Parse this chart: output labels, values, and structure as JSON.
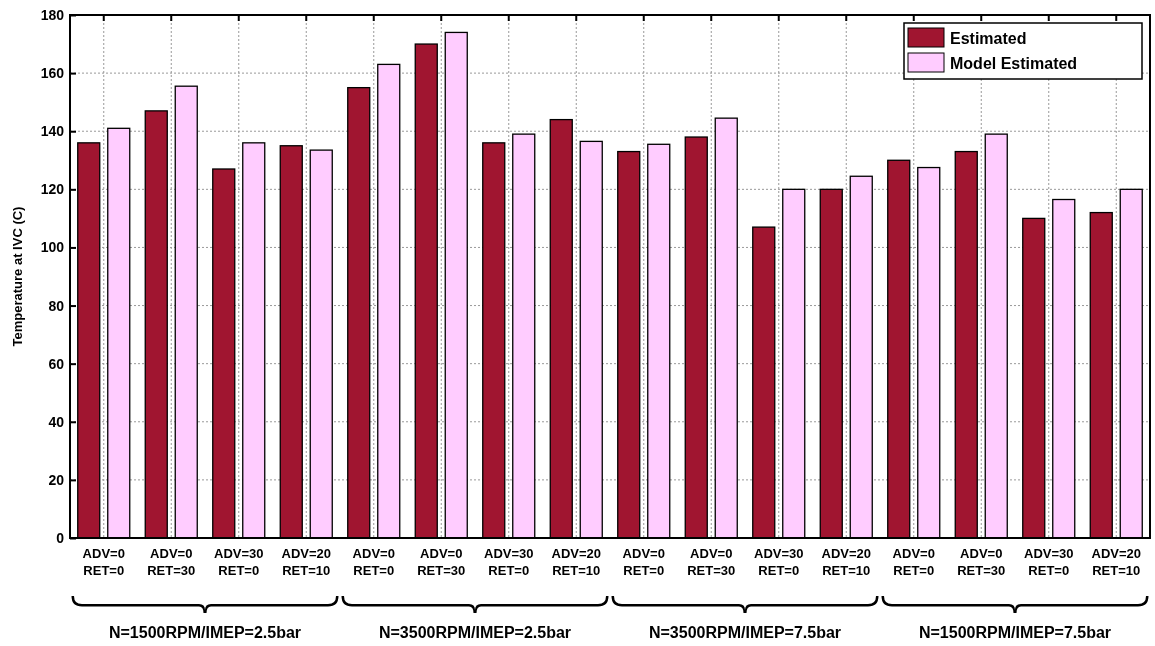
{
  "chart_data": {
    "type": "bar",
    "ylabel": "Temperature at IVC (C)",
    "categories": [
      "ADV=0\nRET=0",
      "ADV=0\nRET=30",
      "ADV=30\nRET=0",
      "ADV=20\nRET=10",
      "ADV=0\nRET=0",
      "ADV=0\nRET=30",
      "ADV=30\nRET=0",
      "ADV=20\nRET=10",
      "ADV=0\nRET=0",
      "ADV=0\nRET=30",
      "ADV=30\nRET=0",
      "ADV=20\nRET=10",
      "ADV=0\nRET=0",
      "ADV=0\nRET=30",
      "ADV=30\nRET=0",
      "ADV=20\nRET=10"
    ],
    "series": [
      {
        "name": "Estimated",
        "color": "#a01530",
        "values": [
          136,
          147,
          127,
          135,
          155,
          170,
          136,
          144,
          133,
          138,
          107,
          120,
          130,
          133,
          110,
          112
        ]
      },
      {
        "name": "Model Estimated",
        "color": "#ffccff",
        "values": [
          141,
          155.5,
          136,
          133.5,
          163,
          174,
          139,
          136.5,
          135.5,
          144.5,
          120,
          124.5,
          127.5,
          139,
          116.5,
          120
        ]
      }
    ],
    "ylim": [
      0,
      180
    ],
    "yticks": [
      0,
      20,
      40,
      60,
      80,
      100,
      120,
      140,
      160,
      180
    ],
    "grid": true,
    "legend": "top right",
    "annotations": [
      "N=1500RPM/IMEP=2.5bar",
      "N=3500RPM/IMEP=2.5bar",
      "N=3500RPM/IMEP=7.5bar",
      "N=1500RPM/IMEP=7.5bar"
    ]
  }
}
